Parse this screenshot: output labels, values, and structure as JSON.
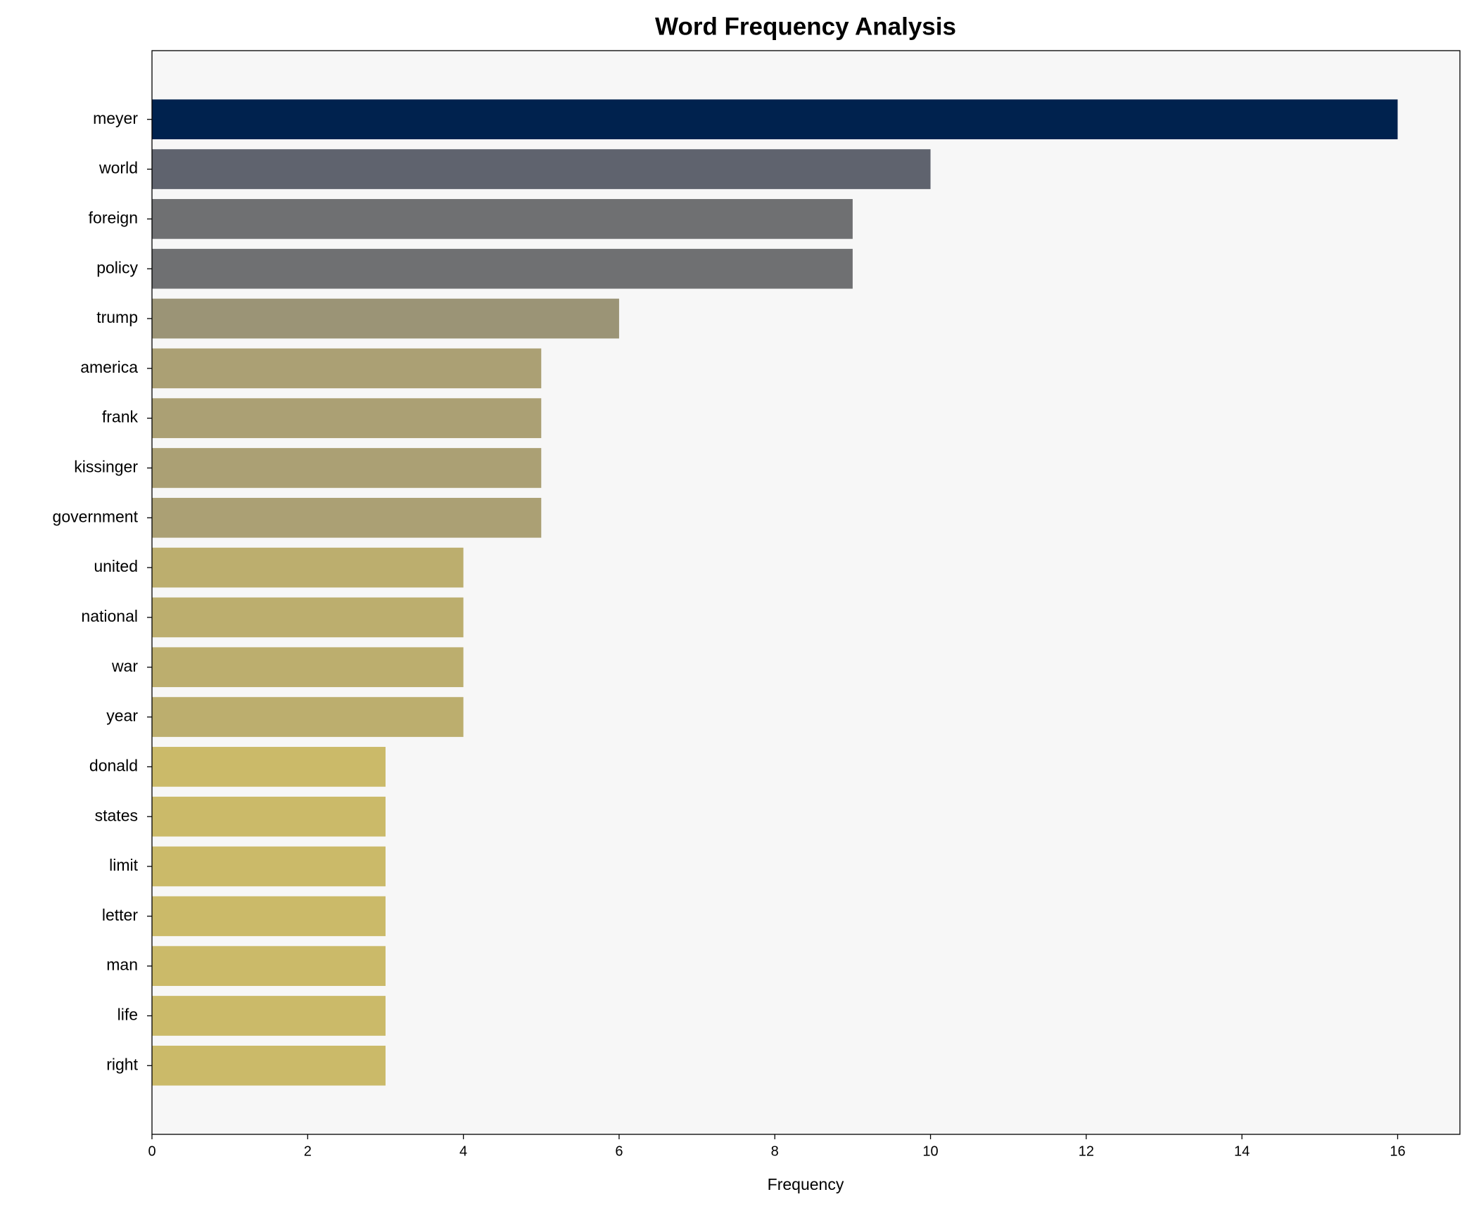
{
  "chart_data": {
    "type": "barh",
    "title": "Word Frequency Analysis",
    "xlabel": "Frequency",
    "categories": [
      "meyer",
      "world",
      "foreign",
      "policy",
      "trump",
      "america",
      "frank",
      "kissinger",
      "government",
      "united",
      "national",
      "war",
      "year",
      "donald",
      "states",
      "limit",
      "letter",
      "man",
      "life",
      "right"
    ],
    "values": [
      16,
      10,
      9,
      9,
      6,
      5,
      5,
      5,
      5,
      4,
      4,
      4,
      4,
      3,
      3,
      3,
      3,
      3,
      3,
      3
    ],
    "colors": [
      "#00224e",
      "#5f636e",
      "#6f7072",
      "#6f7072",
      "#9b9476",
      "#aba074",
      "#aba074",
      "#aba074",
      "#aba074",
      "#bcae6e",
      "#bcae6e",
      "#bcae6e",
      "#bcae6e",
      "#cbba69",
      "#cbba69",
      "#cbba69",
      "#cbba69",
      "#cbba69",
      "#cbba69",
      "#cbba69"
    ],
    "xlim": [
      0,
      16.8
    ],
    "xticks": [
      0,
      2,
      4,
      6,
      8,
      10,
      12,
      14,
      16
    ],
    "grid": false
  }
}
